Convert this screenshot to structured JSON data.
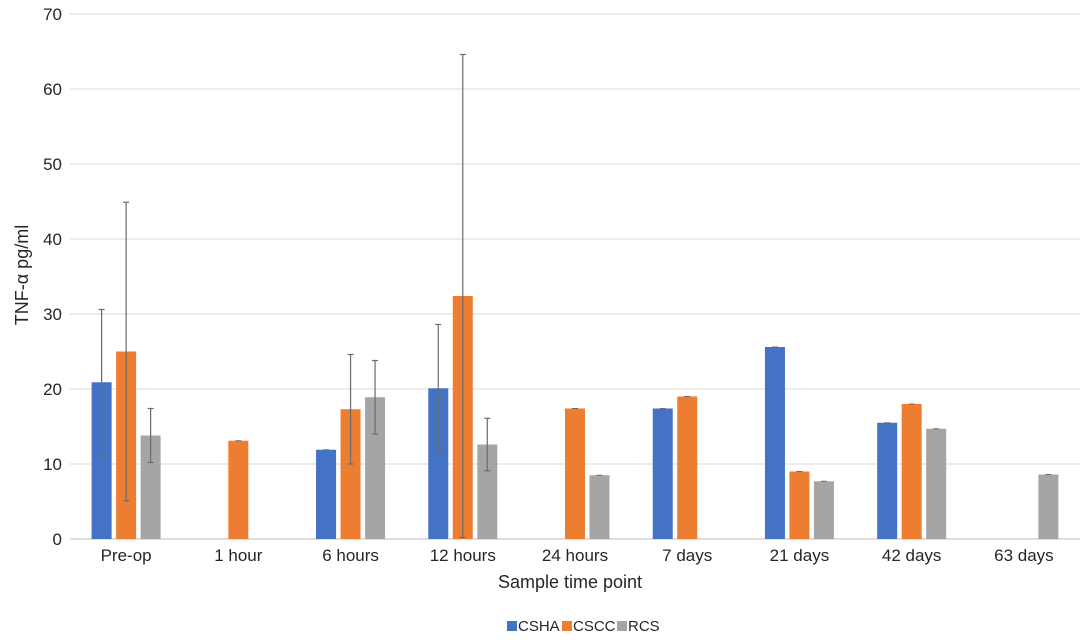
{
  "chart_data": {
    "type": "bar",
    "title": "",
    "xlabel": "Sample time point",
    "ylabel": "TNF-α pg/ml",
    "ylim": [
      0,
      70
    ],
    "yticks": [
      0,
      10,
      20,
      30,
      40,
      50,
      60,
      70
    ],
    "grid": true,
    "legend_position": "bottom",
    "categories": [
      "Pre-op",
      "1 hour",
      "6 hours",
      "12 hours",
      "24 hours",
      "7 days",
      "21 days",
      "42 days",
      "63 days"
    ],
    "series": [
      {
        "name": "CSHA",
        "color": "#4472C4",
        "values": [
          20.9,
          null,
          11.9,
          20.1,
          null,
          17.4,
          25.6,
          15.5,
          null
        ],
        "error": [
          9.7,
          null,
          0,
          8.5,
          null,
          0,
          0,
          0,
          null
        ]
      },
      {
        "name": "CSCC",
        "color": "#ED7D31",
        "values": [
          25.0,
          13.1,
          17.3,
          32.4,
          17.4,
          19.0,
          9.0,
          18.0,
          null
        ],
        "error": [
          19.9,
          0,
          7.3,
          32.2,
          0,
          0,
          0,
          0,
          null
        ]
      },
      {
        "name": "RCS",
        "color": "#A5A5A5",
        "values": [
          13.8,
          null,
          18.9,
          12.6,
          8.5,
          null,
          7.7,
          14.7,
          8.6
        ],
        "error": [
          3.6,
          null,
          4.9,
          3.5,
          0,
          null,
          0,
          0,
          0
        ]
      }
    ]
  }
}
